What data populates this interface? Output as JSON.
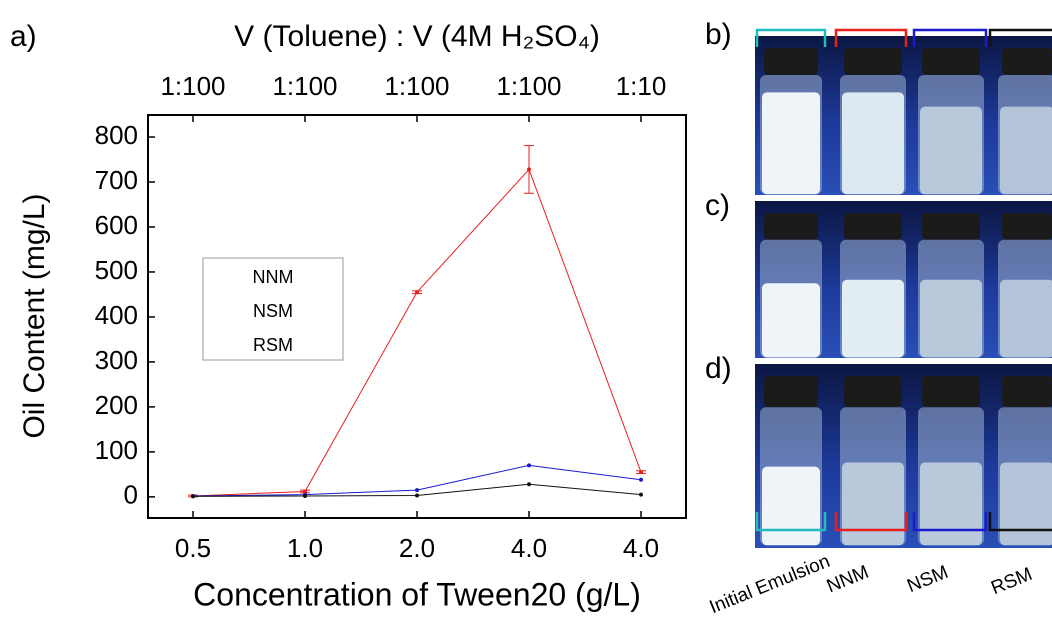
{
  "chart_data": {
    "type": "line",
    "panel_label": "a)",
    "top_x_label": "V (Toluene) : V (4M H₂SO₄)",
    "top_categories": [
      "1:100",
      "1:100",
      "1:100",
      "1:100",
      "1:10"
    ],
    "x_label": "Concentration of Tween20 (g/L)",
    "y_label": "Oil Content (mg/L)",
    "categories": [
      "0.5",
      "1.0",
      "2.0",
      "4.0",
      "4.0"
    ],
    "series": [
      {
        "name": "NNM",
        "color": "#e8201c",
        "values": [
          2,
          12,
          455,
          728,
          55
        ],
        "errors": [
          2,
          3,
          3,
          53,
          3
        ]
      },
      {
        "name": "NSM",
        "color": "#1a1ad0",
        "values": [
          2,
          5,
          15,
          70,
          38
        ]
      },
      {
        "name": "RSM",
        "color": "#111111",
        "values": [
          1,
          2,
          3,
          28,
          5
        ]
      }
    ],
    "ylim": [
      -47,
      849
    ],
    "yticks": [
      0,
      100,
      200,
      300,
      400,
      500,
      600,
      700,
      800
    ],
    "legend": "left"
  },
  "photo_panel": {
    "panel_labels": [
      "b)",
      "c)",
      "d)"
    ],
    "sample_labels": [
      {
        "text": "Initial Emulsion",
        "color": "#22bcbc"
      },
      {
        "text": "NNM",
        "color": "#e8201c"
      },
      {
        "text": "NSM",
        "color": "#1a1ad0"
      },
      {
        "text": "RSM",
        "color": "#111111"
      }
    ]
  }
}
